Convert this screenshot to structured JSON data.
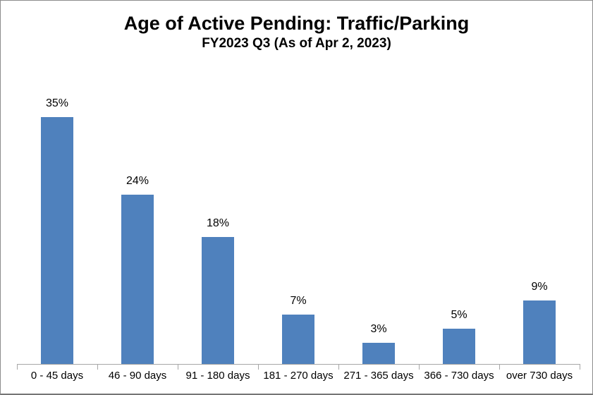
{
  "chart_data": {
    "type": "bar",
    "title": "Age of Active Pending: Traffic/Parking",
    "subtitle": "FY2023 Q3 (As of Apr 2, 2023)",
    "categories": [
      "0 - 45 days",
      "46 - 90 days",
      "91 - 180 days",
      "181 - 270 days",
      "271 - 365 days",
      "366 - 730 days",
      "over 730 days"
    ],
    "values": [
      35,
      24,
      18,
      7,
      3,
      5,
      9
    ],
    "value_labels": [
      "35%",
      "24%",
      "18%",
      "7%",
      "3%",
      "5%",
      "9%"
    ],
    "xlabel": "",
    "ylabel": "",
    "ylim": [
      0,
      40
    ],
    "grid": false,
    "legend_position": "none",
    "bar_color": "#4f81bd",
    "axis_color": "#a6a6a6",
    "text_color": "#000000",
    "frame_border_color": "#8c8c8c"
  }
}
